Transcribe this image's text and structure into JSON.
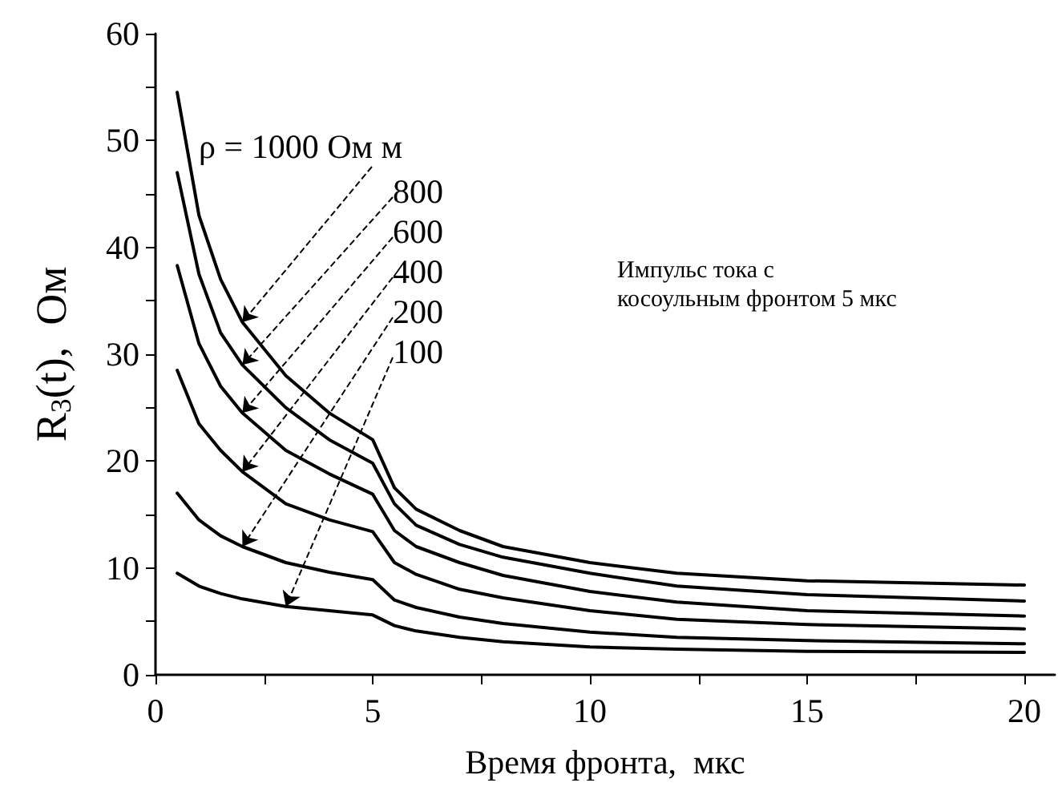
{
  "chart_data": {
    "type": "line",
    "xlabel": "Время фронта,  мкс",
    "ylabel": "R$_{3}$(t),  Ом",
    "annotations": [
      "Импульс тока с\nкосоульным фронтом 5 мкс"
    ],
    "x": [
      0.5,
      1,
      1.5,
      2,
      3,
      4,
      5,
      5.5,
      6,
      7,
      8,
      10,
      12,
      15,
      20
    ],
    "series": [
      {
        "name": "ρ = 1000 Ом м",
        "color": "#000000",
        "values": [
          54.5,
          43,
          37,
          33,
          28,
          24.5,
          22,
          17.5,
          15.5,
          13.5,
          12,
          10.5,
          9.5,
          8.8,
          8.4
        ]
      },
      {
        "name": "800",
        "color": "#000000",
        "values": [
          47,
          37.5,
          32,
          29,
          25,
          22,
          19.8,
          16,
          14,
          12.2,
          11,
          9.5,
          8.3,
          7.5,
          6.9
        ]
      },
      {
        "name": "600",
        "color": "#000000",
        "values": [
          38.3,
          31,
          27,
          24.5,
          21,
          18.8,
          16.9,
          13.5,
          12,
          10.5,
          9.3,
          7.8,
          6.8,
          6,
          5.5
        ]
      },
      {
        "name": "400",
        "color": "#000000",
        "values": [
          28.5,
          23.5,
          21,
          19,
          16,
          14.5,
          13.4,
          10.5,
          9.4,
          8,
          7.2,
          6,
          5.2,
          4.7,
          4.3
        ]
      },
      {
        "name": "200",
        "color": "#000000",
        "values": [
          17,
          14.5,
          13,
          12,
          10.5,
          9.6,
          8.9,
          7,
          6.3,
          5.4,
          4.8,
          4,
          3.5,
          3.2,
          2.9
        ]
      },
      {
        "name": "100",
        "color": "#000000",
        "values": [
          9.5,
          8.3,
          7.6,
          7.1,
          6.4,
          6,
          5.6,
          4.6,
          4.1,
          3.5,
          3.1,
          2.6,
          2.4,
          2.2,
          2.1
        ]
      }
    ],
    "xlim": [
      0,
      20.7
    ],
    "xticks": [
      0,
      {
        "value": 2.5,
        "label": null
      },
      5,
      {
        "value": 7.5,
        "label": null
      },
      10,
      {
        "value": 12.5,
        "label": null
      },
      15,
      {
        "value": 17.5,
        "label": null
      },
      20
    ],
    "ylim": [
      0,
      60
    ],
    "yticks": [
      0,
      {
        "value": 5,
        "label": null
      },
      10,
      {
        "value": 15,
        "label": null
      },
      20,
      {
        "value": 25,
        "label": null
      },
      30,
      {
        "value": 35,
        "label": null
      },
      40,
      {
        "value": 45,
        "label": null
      },
      50,
      {
        "value": 55,
        "label": null
      },
      60
    ],
    "grid": false,
    "legend": false,
    "marker": "none",
    "line_style": "solid"
  }
}
